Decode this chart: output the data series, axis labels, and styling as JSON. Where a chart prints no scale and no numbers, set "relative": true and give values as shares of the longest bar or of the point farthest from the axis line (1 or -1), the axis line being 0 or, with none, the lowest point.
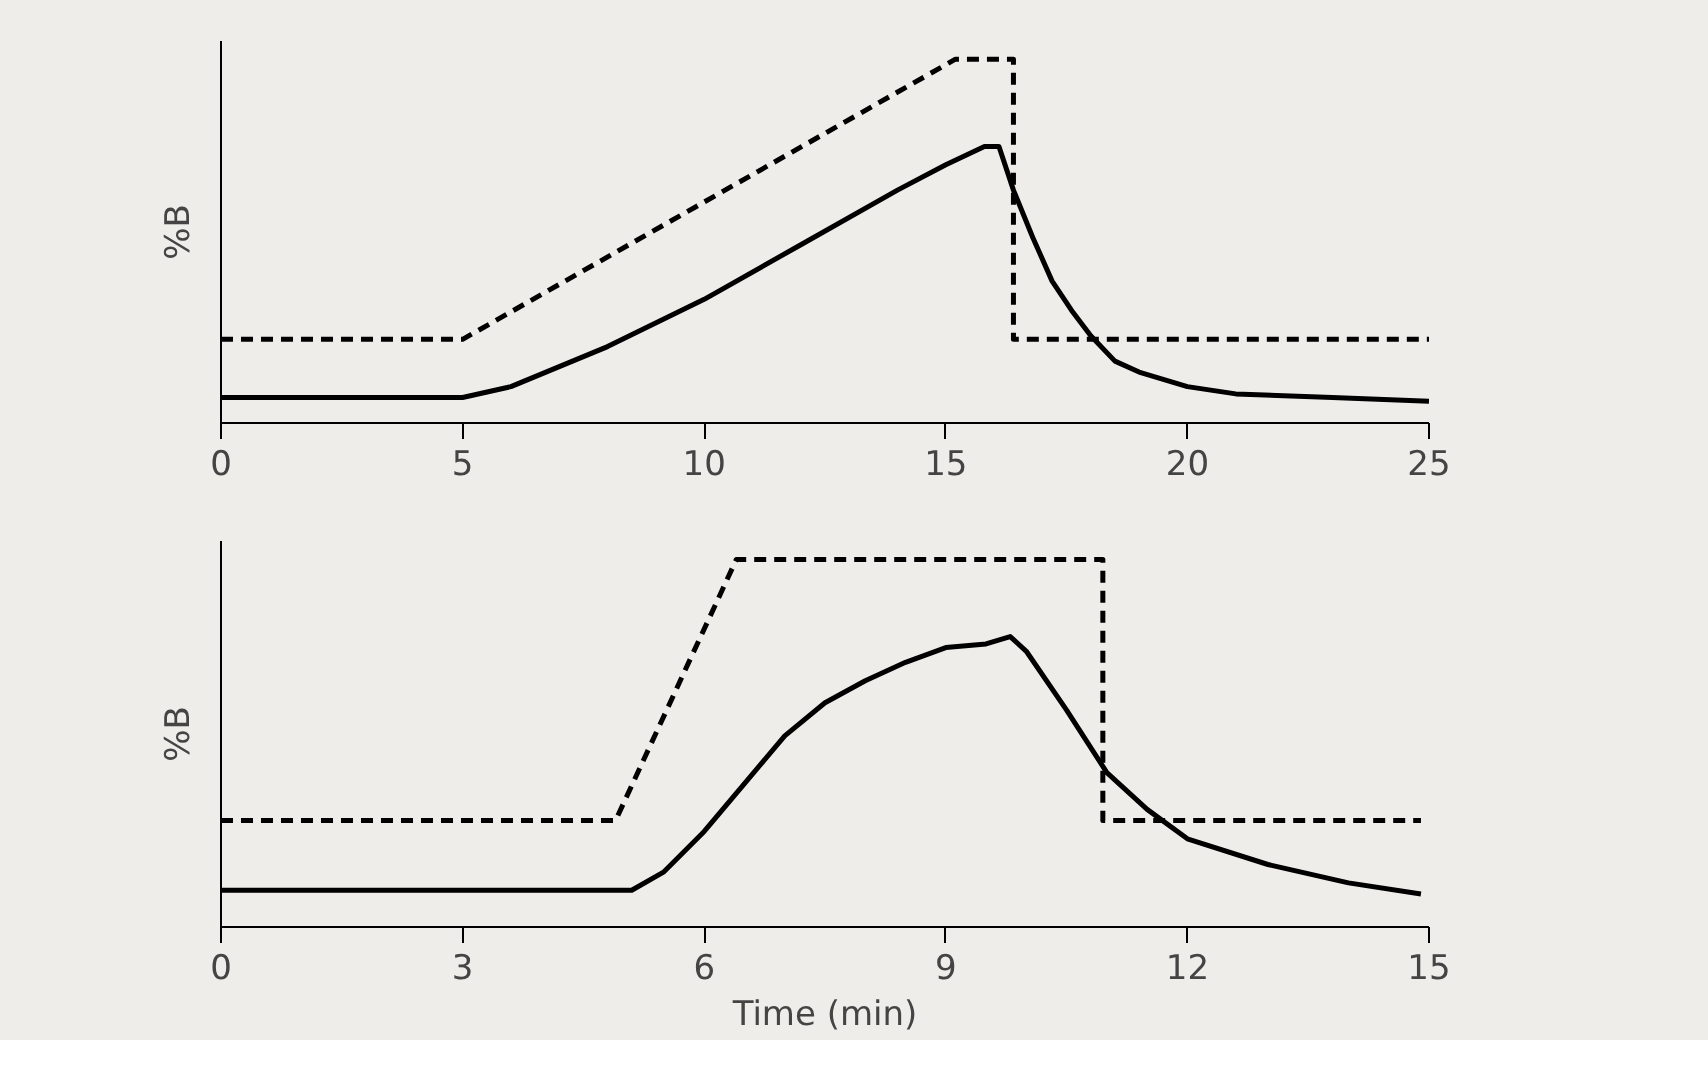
{
  "chart_data": [
    {
      "type": "line",
      "relative": true,
      "ylabel": "%B",
      "xlim": [
        0,
        25
      ],
      "xticks": [
        0,
        5,
        10,
        15,
        20,
        25
      ],
      "grid": false,
      "marker": "none",
      "series": [
        {
          "color": "#000000",
          "line_style": "dashed",
          "x": [
            0,
            5,
            15.2,
            16.4,
            16.4,
            25
          ],
          "values": [
            0.23,
            0.23,
            1,
            1,
            0.23,
            0.23
          ]
        },
        {
          "color": "#000000",
          "line_style": "solid",
          "x": [
            0,
            5,
            6,
            8,
            10,
            12,
            14,
            15,
            15.8,
            16.1,
            16.4,
            16.8,
            17.2,
            17.6,
            18,
            18.5,
            19,
            20,
            21,
            23,
            25
          ],
          "values": [
            0.07,
            0.07,
            0.1,
            0.21,
            0.34,
            0.49,
            0.64,
            0.71,
            0.76,
            0.76,
            0.64,
            0.51,
            0.39,
            0.31,
            0.24,
            0.17,
            0.14,
            0.1,
            0.08,
            0.07,
            0.06
          ]
        }
      ]
    },
    {
      "type": "line",
      "relative": true,
      "ylabel": "%B",
      "xlabel": "Time (min)",
      "xlim": [
        0,
        15
      ],
      "xticks": [
        0,
        3,
        6,
        9,
        12,
        15
      ],
      "grid": false,
      "marker": "none",
      "series": [
        {
          "color": "#000000",
          "line_style": "dashed",
          "x": [
            0,
            4.9,
            6.4,
            10.95,
            10.95,
            14.9
          ],
          "values": [
            0.29,
            0.29,
            1,
            1,
            0.29,
            0.29
          ]
        },
        {
          "color": "#000000",
          "line_style": "solid",
          "x": [
            0,
            5.1,
            5.5,
            6,
            6.5,
            7,
            7.5,
            8,
            8.5,
            9,
            9.5,
            9.8,
            10,
            10.5,
            11,
            11.5,
            12,
            13,
            14,
            14.9
          ],
          "values": [
            0.1,
            0.1,
            0.15,
            0.26,
            0.39,
            0.52,
            0.61,
            0.67,
            0.72,
            0.76,
            0.77,
            0.79,
            0.75,
            0.59,
            0.42,
            0.32,
            0.24,
            0.17,
            0.12,
            0.09
          ]
        }
      ]
    }
  ]
}
